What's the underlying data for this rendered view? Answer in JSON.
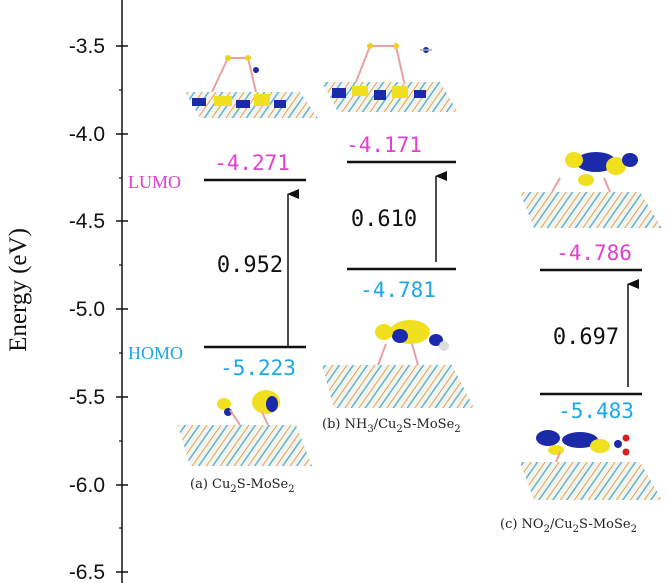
{
  "axis": {
    "label": "Energy (eV)",
    "ticks": [
      "-3.5",
      "-4.0",
      "-4.5",
      "-5.0",
      "-5.5",
      "-6.0",
      "-6.5"
    ],
    "range": [
      -6.5,
      -3.3
    ]
  },
  "labels": {
    "lumo": "LUMO",
    "homo": "HOMO"
  },
  "colors": {
    "lumo": "#e040d0",
    "homo": "#1aa8e6",
    "line": "#111111"
  },
  "systems": [
    {
      "caption": "(a) Cu",
      "caption_sub": "2",
      "caption_rest": "S-MoSe",
      "caption_sub2": "2",
      "lumo": "-4.271",
      "homo": "-5.223",
      "gap": "0.952"
    },
    {
      "caption": "(b) NH",
      "caption_sub": "3",
      "caption_mid": "/Cu",
      "caption_sub_b": "2",
      "caption_rest": "S-MoSe",
      "caption_sub2": "2",
      "lumo": "-4.171",
      "homo": "-4.781",
      "gap": "0.610"
    },
    {
      "caption": "(c) NO",
      "caption_sub": "2",
      "caption_mid": "/Cu",
      "caption_sub_b": "2",
      "caption_rest": "S-MoSe",
      "caption_sub2": "2",
      "lumo": "-4.786",
      "homo": "-5.483",
      "gap": "0.697"
    }
  ]
}
